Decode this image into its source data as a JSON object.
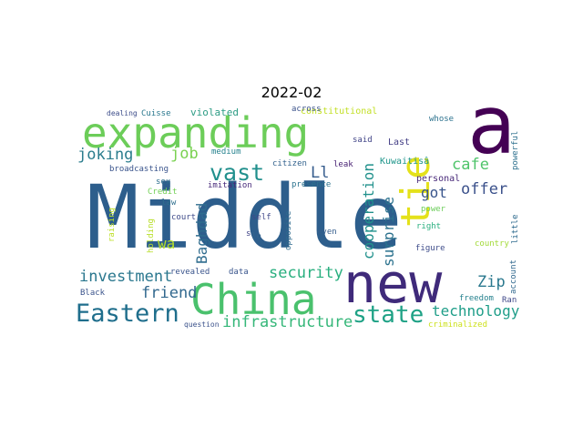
{
  "figure": {
    "title": "2022-02",
    "colormap": "viridis",
    "background": "#ffffff"
  },
  "words": [
    {
      "text": "Middle",
      "color": "#2d5e8c"
    },
    {
      "text": "new",
      "color": "#3f2a7a"
    },
    {
      "text": "expanding",
      "color": "#6ccd59"
    },
    {
      "text": "China",
      "color": "#4ac16d"
    },
    {
      "text": "â",
      "color": "#440154"
    },
    {
      "text": "tie",
      "color": "#e4e11a"
    },
    {
      "text": "Eastern",
      "color": "#1f6e8c"
    },
    {
      "text": "state",
      "color": "#1fa286"
    },
    {
      "text": "vast",
      "color": "#21908d"
    },
    {
      "text": "infrastructure",
      "color": "#35b779"
    },
    {
      "text": "security",
      "color": "#29af7f"
    },
    {
      "text": "investment",
      "color": "#2a778e"
    },
    {
      "text": "friend",
      "color": "#31688e"
    },
    {
      "text": "cooperation",
      "color": "#21918c"
    },
    {
      "text": "surprise",
      "color": "#2c728e"
    },
    {
      "text": "technology",
      "color": "#1f9e89"
    },
    {
      "text": "joking",
      "color": "#2b7d8d"
    },
    {
      "text": "job",
      "color": "#7ad151"
    },
    {
      "text": "Ll",
      "color": "#365d8d"
    },
    {
      "text": "Zip",
      "color": "#2a788e"
    },
    {
      "text": "cafe",
      "color": "#4fc46a"
    },
    {
      "text": "offer",
      "color": "#3b518b"
    },
    {
      "text": "got",
      "color": "#39558c"
    },
    {
      "text": "Baghdad",
      "color": "#2f6c8e"
    },
    {
      "text": "wa",
      "color": "#b5de2b"
    },
    {
      "text": "violated",
      "color": "#2d9c85"
    },
    {
      "text": "constitutional",
      "color": "#c2df23"
    },
    {
      "text": "across",
      "color": "#3b528b"
    },
    {
      "text": "whose",
      "color": "#2c728e"
    },
    {
      "text": "said",
      "color": "#414487"
    },
    {
      "text": "Last",
      "color": "#433e85"
    },
    {
      "text": "powerful",
      "color": "#2d708e"
    },
    {
      "text": "dealing",
      "color": "#3d4d8a"
    },
    {
      "text": "Cuisse",
      "color": "#2a788e"
    },
    {
      "text": "medium",
      "color": "#26828e"
    },
    {
      "text": "citizen",
      "color": "#33628d"
    },
    {
      "text": "leak",
      "color": "#482173"
    },
    {
      "text": "Kuwaitisâ",
      "color": "#1f968b"
    },
    {
      "text": "broadcasting",
      "color": "#3a548c"
    },
    {
      "text": "sex",
      "color": "#2e6f8e"
    },
    {
      "text": "imitation",
      "color": "#472a7a"
    },
    {
      "text": "presence",
      "color": "#2c738e"
    },
    {
      "text": "personal",
      "color": "#482979"
    },
    {
      "text": "Credit",
      "color": "#73d056"
    },
    {
      "text": "law",
      "color": "#2e6e8e"
    },
    {
      "text": "court",
      "color": "#3e4a89"
    },
    {
      "text": "self",
      "color": "#3f4788"
    },
    {
      "text": "opposite",
      "color": "#2f6b8e"
    },
    {
      "text": "power",
      "color": "#6ccd5a"
    },
    {
      "text": "raising",
      "color": "#bddf26"
    },
    {
      "text": "holding",
      "color": "#b8de29"
    },
    {
      "text": "s",
      "color": "#404588"
    },
    {
      "text": "le",
      "color": "#33638d"
    },
    {
      "text": "even",
      "color": "#355e8d"
    },
    {
      "text": "right",
      "color": "#29af7f"
    },
    {
      "text": "little",
      "color": "#2f6b8e"
    },
    {
      "text": "country",
      "color": "#a2da37"
    },
    {
      "text": "figure",
      "color": "#3e4c8a"
    },
    {
      "text": "account",
      "color": "#31688e"
    },
    {
      "text": "revealed",
      "color": "#3a548c"
    },
    {
      "text": "data",
      "color": "#39558c"
    },
    {
      "text": "Black",
      "color": "#3a538b"
    },
    {
      "text": "freedom",
      "color": "#26828e"
    },
    {
      "text": "Ran",
      "color": "#3f4889"
    },
    {
      "text": "question",
      "color": "#3b528b"
    },
    {
      "text": "criminalized",
      "color": "#cde11d"
    }
  ]
}
